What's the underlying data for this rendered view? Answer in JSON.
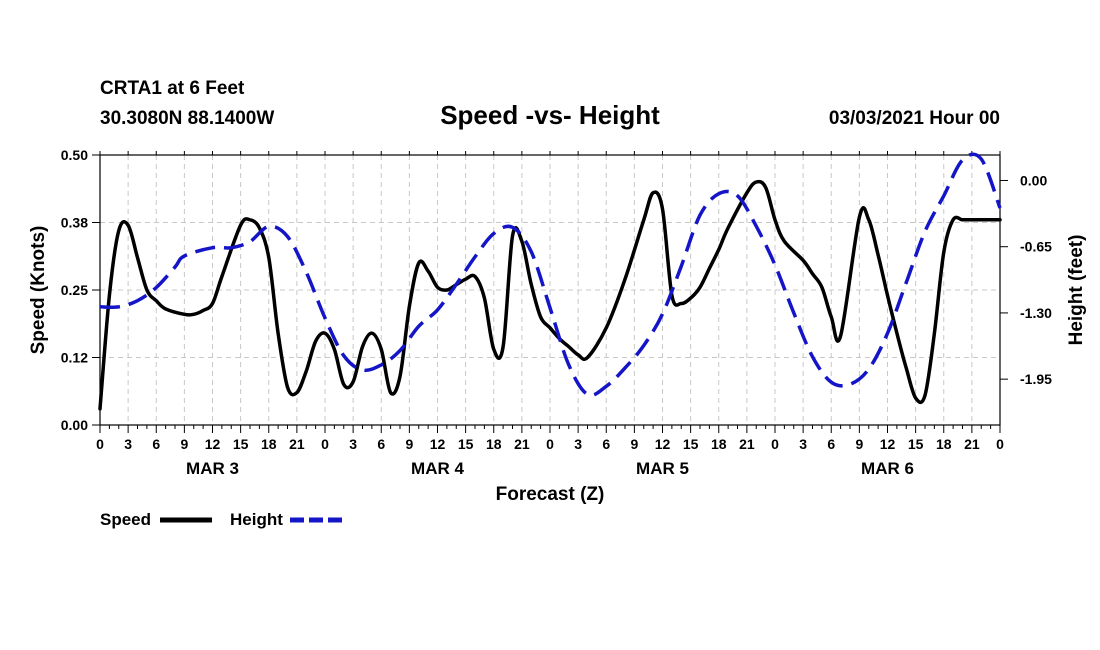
{
  "chart_data": {
    "type": "line",
    "title": "Speed -vs- Height",
    "station": "CRTA1 at 6 Feet",
    "location": "30.3080N 88.1400W",
    "run": "03/03/2021 Hour 00",
    "xlabel": "Forecast (Z)",
    "ylabel_left": "Speed (Knots)",
    "ylabel_right": "Height (feet)",
    "x_range_hours": [
      0,
      96
    ],
    "ylim_left": [
      0,
      0.5
    ],
    "ylim_right": [
      -2.4,
      0.25
    ],
    "grid": true,
    "left_ticks": [
      "0.00",
      "0.12",
      "0.25",
      "0.38",
      "0.50"
    ],
    "left_tick_values": [
      0,
      0.125,
      0.25,
      0.375,
      0.5
    ],
    "right_ticks": [
      "0.00",
      "-0.65",
      "-1.30",
      "-1.95"
    ],
    "right_tick_values": [
      0,
      -0.65,
      -1.3,
      -1.95
    ],
    "x_tick_labels": [
      "0",
      "3",
      "6",
      "9",
      "12",
      "15",
      "18",
      "21",
      "0",
      "3",
      "6",
      "9",
      "12",
      "15",
      "18",
      "21",
      "0",
      "3",
      "6",
      "9",
      "12",
      "15",
      "18",
      "21",
      "0",
      "3",
      "6",
      "9",
      "12",
      "15",
      "18",
      "21",
      "0"
    ],
    "date_labels": [
      "MAR 3",
      "MAR 4",
      "MAR 5",
      "MAR 6"
    ],
    "date_label_hours": [
      12,
      36,
      60,
      84
    ],
    "legend": [
      "Speed",
      "Height"
    ],
    "legend_position": "bottom-left",
    "series": [
      {
        "name": "Speed",
        "axis": "left",
        "style": "solid",
        "color": "#000000",
        "x": [
          0,
          1,
          2,
          3,
          4,
          5,
          6,
          7,
          9,
          10,
          11,
          12,
          13,
          15,
          16,
          17,
          18,
          19,
          20,
          21,
          22,
          23,
          24,
          25,
          26,
          27,
          28,
          29,
          30,
          31,
          32,
          33,
          34,
          35,
          36,
          37,
          38,
          39,
          40,
          41,
          42,
          43,
          44,
          45,
          46,
          47,
          48,
          49,
          50,
          51,
          52,
          54,
          56,
          58,
          59,
          60,
          61,
          62,
          63,
          64,
          65,
          66,
          67,
          69,
          70,
          71,
          72,
          73,
          75,
          76,
          77,
          78,
          79,
          81,
          82,
          83,
          84,
          85,
          86,
          87,
          88,
          89,
          90,
          91,
          92,
          93,
          94,
          95,
          96
        ],
        "values": [
          0.03,
          0.24,
          0.36,
          0.37,
          0.31,
          0.25,
          0.23,
          0.215,
          0.205,
          0.205,
          0.212,
          0.225,
          0.275,
          0.37,
          0.38,
          0.365,
          0.31,
          0.17,
          0.07,
          0.06,
          0.1,
          0.155,
          0.17,
          0.14,
          0.075,
          0.08,
          0.145,
          0.17,
          0.14,
          0.06,
          0.09,
          0.22,
          0.3,
          0.285,
          0.255,
          0.25,
          0.26,
          0.27,
          0.275,
          0.235,
          0.14,
          0.145,
          0.35,
          0.34,
          0.26,
          0.2,
          0.18,
          0.16,
          0.145,
          0.13,
          0.125,
          0.18,
          0.27,
          0.38,
          0.43,
          0.4,
          0.24,
          0.225,
          0.235,
          0.255,
          0.29,
          0.325,
          0.365,
          0.43,
          0.45,
          0.44,
          0.38,
          0.34,
          0.305,
          0.28,
          0.255,
          0.2,
          0.165,
          0.385,
          0.38,
          0.315,
          0.24,
          0.17,
          0.105,
          0.05,
          0.055,
          0.17,
          0.32,
          0.38,
          0.38,
          0.38,
          0.38,
          0.38,
          0.38
        ]
      },
      {
        "name": "Height",
        "axis": "right",
        "style": "dashed",
        "color": "#1515c8",
        "x": [
          0,
          2,
          4,
          6,
          8,
          9,
          12,
          14,
          16,
          18,
          20,
          22,
          24,
          26,
          28,
          30,
          32,
          34,
          36,
          38,
          40,
          42,
          44,
          46,
          48,
          50,
          52,
          54,
          56,
          58,
          60,
          62,
          64,
          66,
          68,
          70,
          72,
          74,
          76,
          78,
          80,
          82,
          84,
          86,
          88,
          90,
          92,
          94,
          96
        ],
        "values": [
          -1.24,
          -1.24,
          -1.18,
          -1.05,
          -0.85,
          -0.74,
          -0.66,
          -0.66,
          -0.6,
          -0.45,
          -0.55,
          -0.9,
          -1.35,
          -1.72,
          -1.86,
          -1.81,
          -1.67,
          -1.43,
          -1.27,
          -1.02,
          -0.75,
          -0.52,
          -0.46,
          -0.7,
          -1.25,
          -1.81,
          -2.1,
          -2.02,
          -1.84,
          -1.62,
          -1.31,
          -0.84,
          -0.34,
          -0.13,
          -0.15,
          -0.45,
          -0.83,
          -1.3,
          -1.73,
          -1.98,
          -2.0,
          -1.85,
          -1.5,
          -1.0,
          -0.5,
          -0.15,
          0.2,
          0.21,
          -0.27
        ]
      }
    ]
  }
}
